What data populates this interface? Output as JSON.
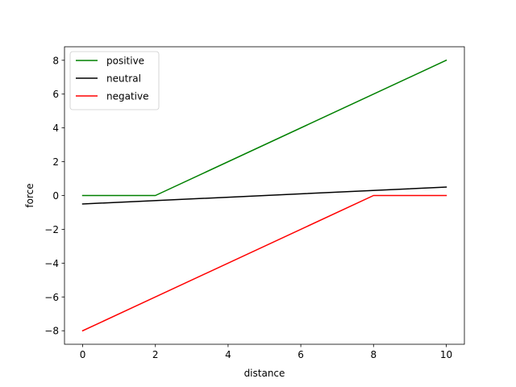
{
  "chart_data": {
    "type": "line",
    "title": "",
    "xlabel": "distance",
    "ylabel": "force",
    "xlim": [
      -0.5,
      10.5
    ],
    "ylim": [
      -8.8,
      8.8
    ],
    "xticks": [
      0,
      2,
      4,
      6,
      8,
      10
    ],
    "yticks": [
      -8,
      -6,
      -4,
      -2,
      0,
      2,
      4,
      6,
      8
    ],
    "grid": false,
    "legend_position": "top-left",
    "series": [
      {
        "name": "positive",
        "color": "#008000",
        "x": [
          0,
          2,
          10
        ],
        "y": [
          0,
          0,
          8
        ]
      },
      {
        "name": "neutral",
        "color": "#000000",
        "x": [
          0,
          10
        ],
        "y": [
          -0.5,
          0.5
        ]
      },
      {
        "name": "negative",
        "color": "#ff0000",
        "x": [
          0,
          8,
          10
        ],
        "y": [
          -8,
          0,
          0
        ]
      }
    ]
  }
}
